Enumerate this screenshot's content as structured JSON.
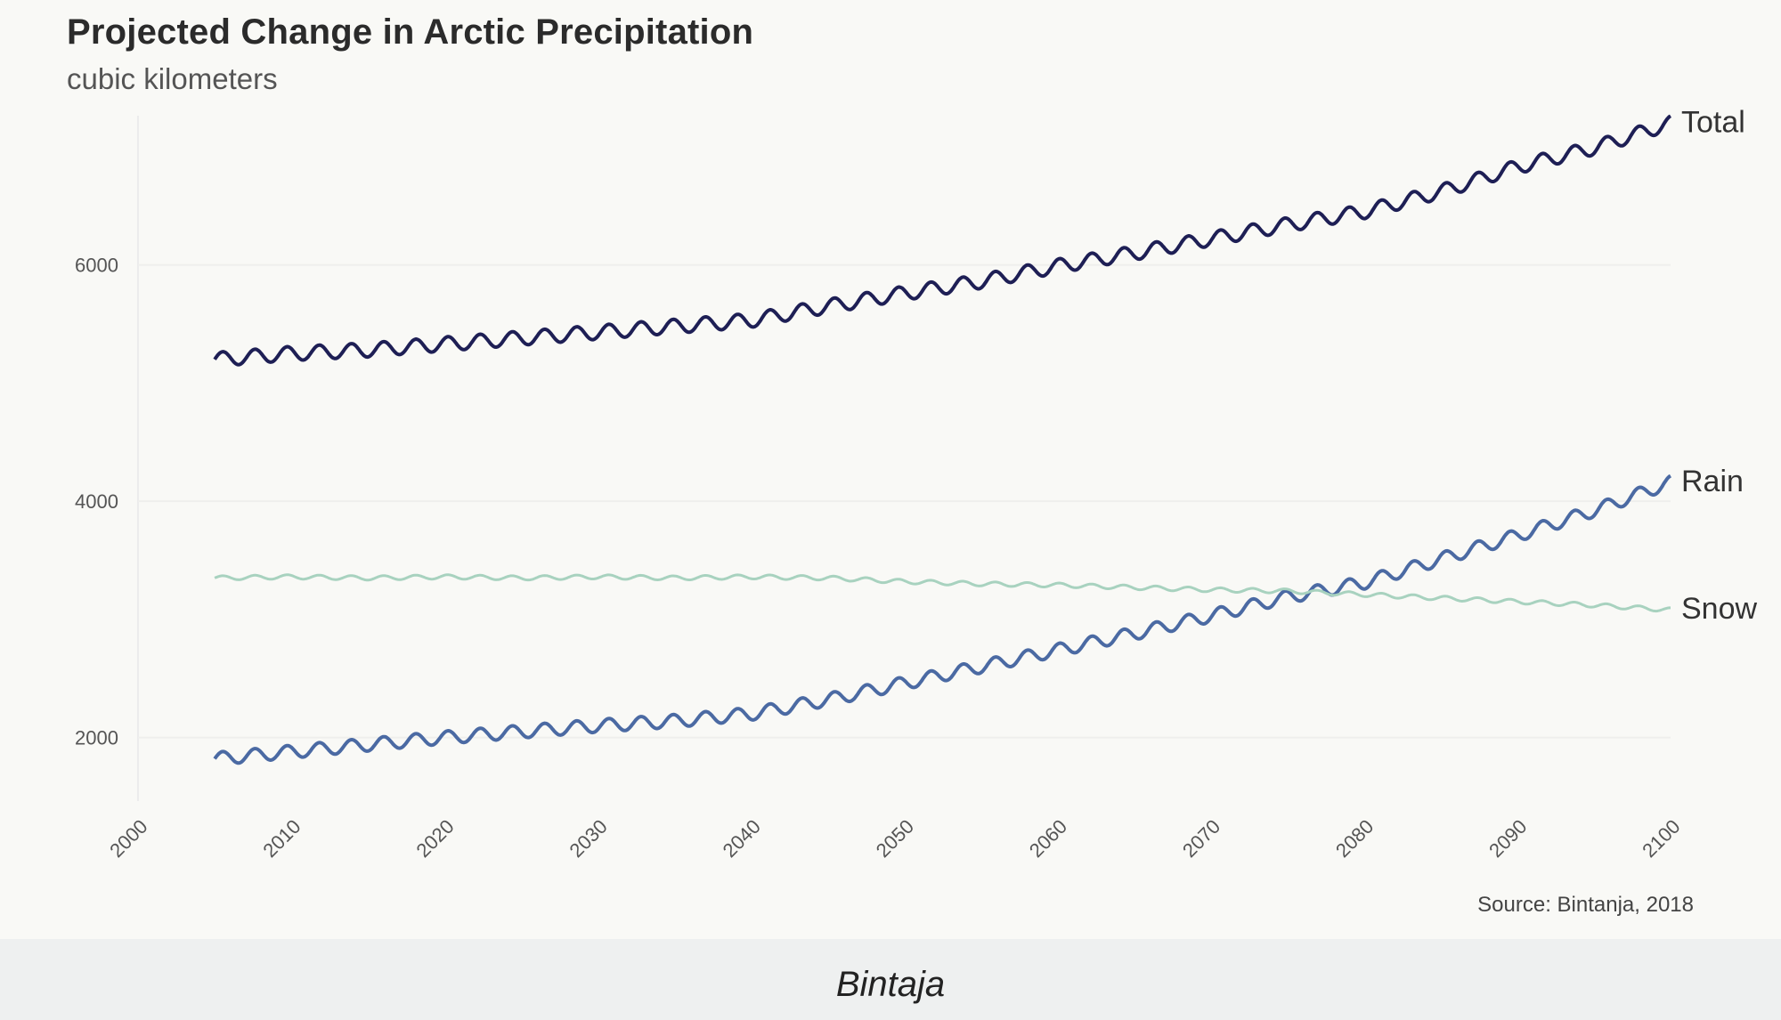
{
  "chart_data": {
    "type": "line",
    "title": "Projected Change in Arctic Precipitation",
    "subtitle": "cubic kilometers",
    "source": "Source: Bintanja, 2018",
    "xlabel": "",
    "ylabel": "",
    "xlim": [
      2000,
      2100
    ],
    "ylim": [
      1500,
      7300
    ],
    "x_ticks": [
      2000,
      2010,
      2020,
      2030,
      2040,
      2050,
      2060,
      2070,
      2080,
      2090,
      2100
    ],
    "y_ticks": [
      2000,
      4000,
      6000
    ],
    "grid": true,
    "legend": "inline-right",
    "series": [
      {
        "name": "Total",
        "color": "#1e1f55",
        "x": [
          2005,
          2010,
          2015,
          2020,
          2025,
          2030,
          2035,
          2040,
          2045,
          2050,
          2055,
          2060,
          2065,
          2070,
          2075,
          2080,
          2085,
          2090,
          2095,
          2100
        ],
        "values": [
          5200,
          5250,
          5280,
          5330,
          5380,
          5430,
          5480,
          5530,
          5650,
          5760,
          5860,
          5990,
          6100,
          6220,
          6340,
          6450,
          6620,
          6830,
          6990,
          7200
        ],
        "amplitude": 60
      },
      {
        "name": "Rain",
        "color": "#4b6aa3",
        "x": [
          2005,
          2010,
          2015,
          2020,
          2025,
          2030,
          2035,
          2040,
          2045,
          2050,
          2055,
          2060,
          2065,
          2070,
          2075,
          2080,
          2085,
          2090,
          2095,
          2100
        ],
        "values": [
          1820,
          1880,
          1940,
          2000,
          2050,
          2100,
          2140,
          2200,
          2320,
          2460,
          2600,
          2740,
          2880,
          3030,
          3190,
          3310,
          3510,
          3710,
          3920,
          4160
        ],
        "amplitude": 55
      },
      {
        "name": "Snow",
        "color": "#a8d2bf",
        "x": [
          2005,
          2010,
          2015,
          2020,
          2025,
          2030,
          2035,
          2040,
          2045,
          2050,
          2055,
          2060,
          2065,
          2070,
          2075,
          2080,
          2085,
          2090,
          2095,
          2100
        ],
        "values": [
          3350,
          3360,
          3350,
          3360,
          3350,
          3360,
          3350,
          3360,
          3350,
          3320,
          3300,
          3290,
          3270,
          3250,
          3240,
          3210,
          3180,
          3150,
          3120,
          3080
        ],
        "amplitude": 18
      }
    ]
  },
  "caption": "Bintaja"
}
